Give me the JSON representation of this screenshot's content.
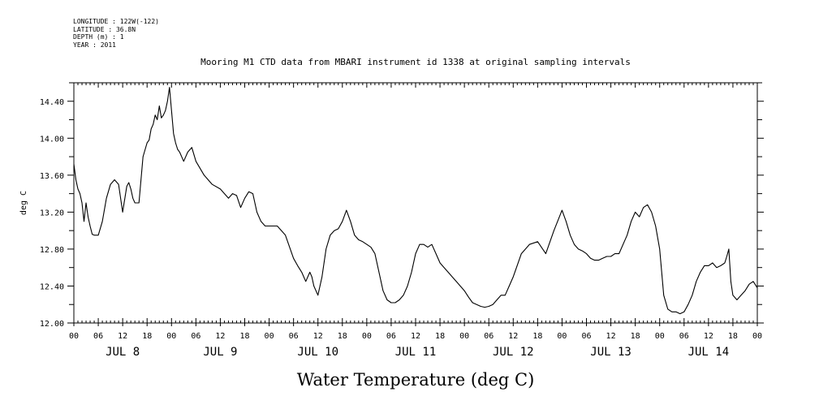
{
  "header": {
    "longitude": "LONGITUDE : 122W(-122)",
    "latitude": "LATITUDE : 36.8N",
    "depth": "DEPTH (m) : 1",
    "year": "YEAR : 2011"
  },
  "chart_data": {
    "type": "line",
    "title": "Mooring M1 CTD data from MBARI instrument id 1338 at original sampling intervals",
    "xlabel": "Water Temperature (deg C)",
    "ylabel": "deg C",
    "ylim": [
      12.0,
      14.6
    ],
    "xlim_hours": [
      0,
      168
    ],
    "yticks": [
      "12.00",
      "12.40",
      "12.80",
      "13.20",
      "13.60",
      "14.00",
      "14.40"
    ],
    "ytick_values": [
      12.0,
      12.4,
      12.8,
      13.2,
      13.6,
      14.0,
      14.4
    ],
    "hour_labels": [
      "00",
      "06",
      "12",
      "18",
      "00",
      "06",
      "12",
      "18",
      "00",
      "06",
      "12",
      "18",
      "00",
      "06",
      "12",
      "18",
      "00",
      "06",
      "12",
      "18",
      "00",
      "06",
      "12",
      "18",
      "00",
      "06",
      "12",
      "18",
      "00"
    ],
    "day_labels": [
      "JUL  8",
      "JUL  9",
      "JUL 10",
      "JUL 11",
      "JUL 12",
      "JUL 13",
      "JUL 14"
    ],
    "grid": false,
    "series": [
      {
        "color": "#000000",
        "x": [
          0,
          0.5,
          1,
          1.5,
          2,
          2.5,
          3,
          3.5,
          4,
          4.5,
          5,
          6,
          7,
          8,
          9,
          10,
          11,
          12,
          13,
          13.5,
          14,
          14.5,
          15,
          16,
          17,
          18,
          18.5,
          19,
          19.5,
          20,
          20.5,
          21,
          21.5,
          22,
          22.5,
          23,
          23.5,
          24,
          24.5,
          25,
          25.5,
          26,
          27,
          28,
          29,
          30,
          32,
          34,
          36,
          38,
          39,
          40,
          41,
          42,
          43,
          44,
          45,
          46,
          47,
          47.5,
          48,
          49,
          50,
          52,
          54,
          55,
          56,
          57,
          58,
          58.5,
          59,
          60,
          61,
          62,
          63,
          64,
          65,
          66,
          67,
          68,
          69,
          70,
          71,
          72,
          73,
          74,
          75,
          76,
          77,
          78,
          79,
          80,
          81,
          82,
          83,
          84,
          85,
          86,
          87,
          88,
          89,
          90,
          91,
          92,
          93,
          94,
          95,
          96,
          97,
          98,
          99,
          100,
          101,
          102,
          103,
          104,
          105,
          106,
          107,
          108,
          110,
          112,
          114,
          116,
          118,
          120,
          121,
          122,
          123,
          124,
          125,
          126,
          127,
          128,
          129,
          130,
          131,
          132,
          133,
          134,
          135,
          136,
          137,
          138,
          139,
          140,
          141,
          142,
          143,
          144,
          145,
          146,
          147,
          148,
          149,
          150,
          151,
          152,
          153,
          154,
          155,
          156,
          157,
          158,
          159,
          160,
          160.5,
          161,
          161.5,
          162,
          163,
          164,
          165,
          166,
          167,
          168
        ],
        "y": [
          13.72,
          13.55,
          13.45,
          13.4,
          13.3,
          13.1,
          13.3,
          13.15,
          13.05,
          12.96,
          12.95,
          12.95,
          13.1,
          13.35,
          13.5,
          13.55,
          13.5,
          13.2,
          13.48,
          13.52,
          13.45,
          13.35,
          13.3,
          13.3,
          13.8,
          13.95,
          13.98,
          14.1,
          14.15,
          14.25,
          14.2,
          14.35,
          14.22,
          14.25,
          14.3,
          14.4,
          14.55,
          14.3,
          14.05,
          13.95,
          13.88,
          13.85,
          13.75,
          13.85,
          13.9,
          13.75,
          13.6,
          13.5,
          13.45,
          13.35,
          13.4,
          13.38,
          13.25,
          13.35,
          13.42,
          13.4,
          13.2,
          13.1,
          13.05,
          13.05,
          13.05,
          13.05,
          13.05,
          12.95,
          12.7,
          12.62,
          12.55,
          12.45,
          12.55,
          12.5,
          12.4,
          12.3,
          12.5,
          12.8,
          12.95,
          13.0,
          13.02,
          13.1,
          13.22,
          13.1,
          12.95,
          12.9,
          12.88,
          12.85,
          12.82,
          12.75,
          12.55,
          12.35,
          12.25,
          12.22,
          12.22,
          12.25,
          12.3,
          12.4,
          12.55,
          12.75,
          12.85,
          12.85,
          12.82,
          12.85,
          12.75,
          12.65,
          12.6,
          12.55,
          12.5,
          12.45,
          12.4,
          12.35,
          12.28,
          12.22,
          12.2,
          12.18,
          12.17,
          12.18,
          12.2,
          12.25,
          12.3,
          12.3,
          12.4,
          12.5,
          12.75,
          12.85,
          12.88,
          12.75,
          13.0,
          13.22,
          13.1,
          12.95,
          12.85,
          12.8,
          12.78,
          12.75,
          12.7,
          12.68,
          12.68,
          12.7,
          12.72,
          12.72,
          12.75,
          12.75,
          12.85,
          12.95,
          13.1,
          13.2,
          13.15,
          13.25,
          13.28,
          13.2,
          13.05,
          12.8,
          12.3,
          12.15,
          12.12,
          12.12,
          12.1,
          12.12,
          12.2,
          12.3,
          12.45,
          12.55,
          12.62,
          12.62,
          12.65,
          12.6,
          12.62,
          12.65,
          12.72,
          12.8,
          12.45,
          12.3,
          12.25,
          12.3,
          12.35,
          12.42,
          12.45,
          12.38
        ]
      }
    ]
  }
}
